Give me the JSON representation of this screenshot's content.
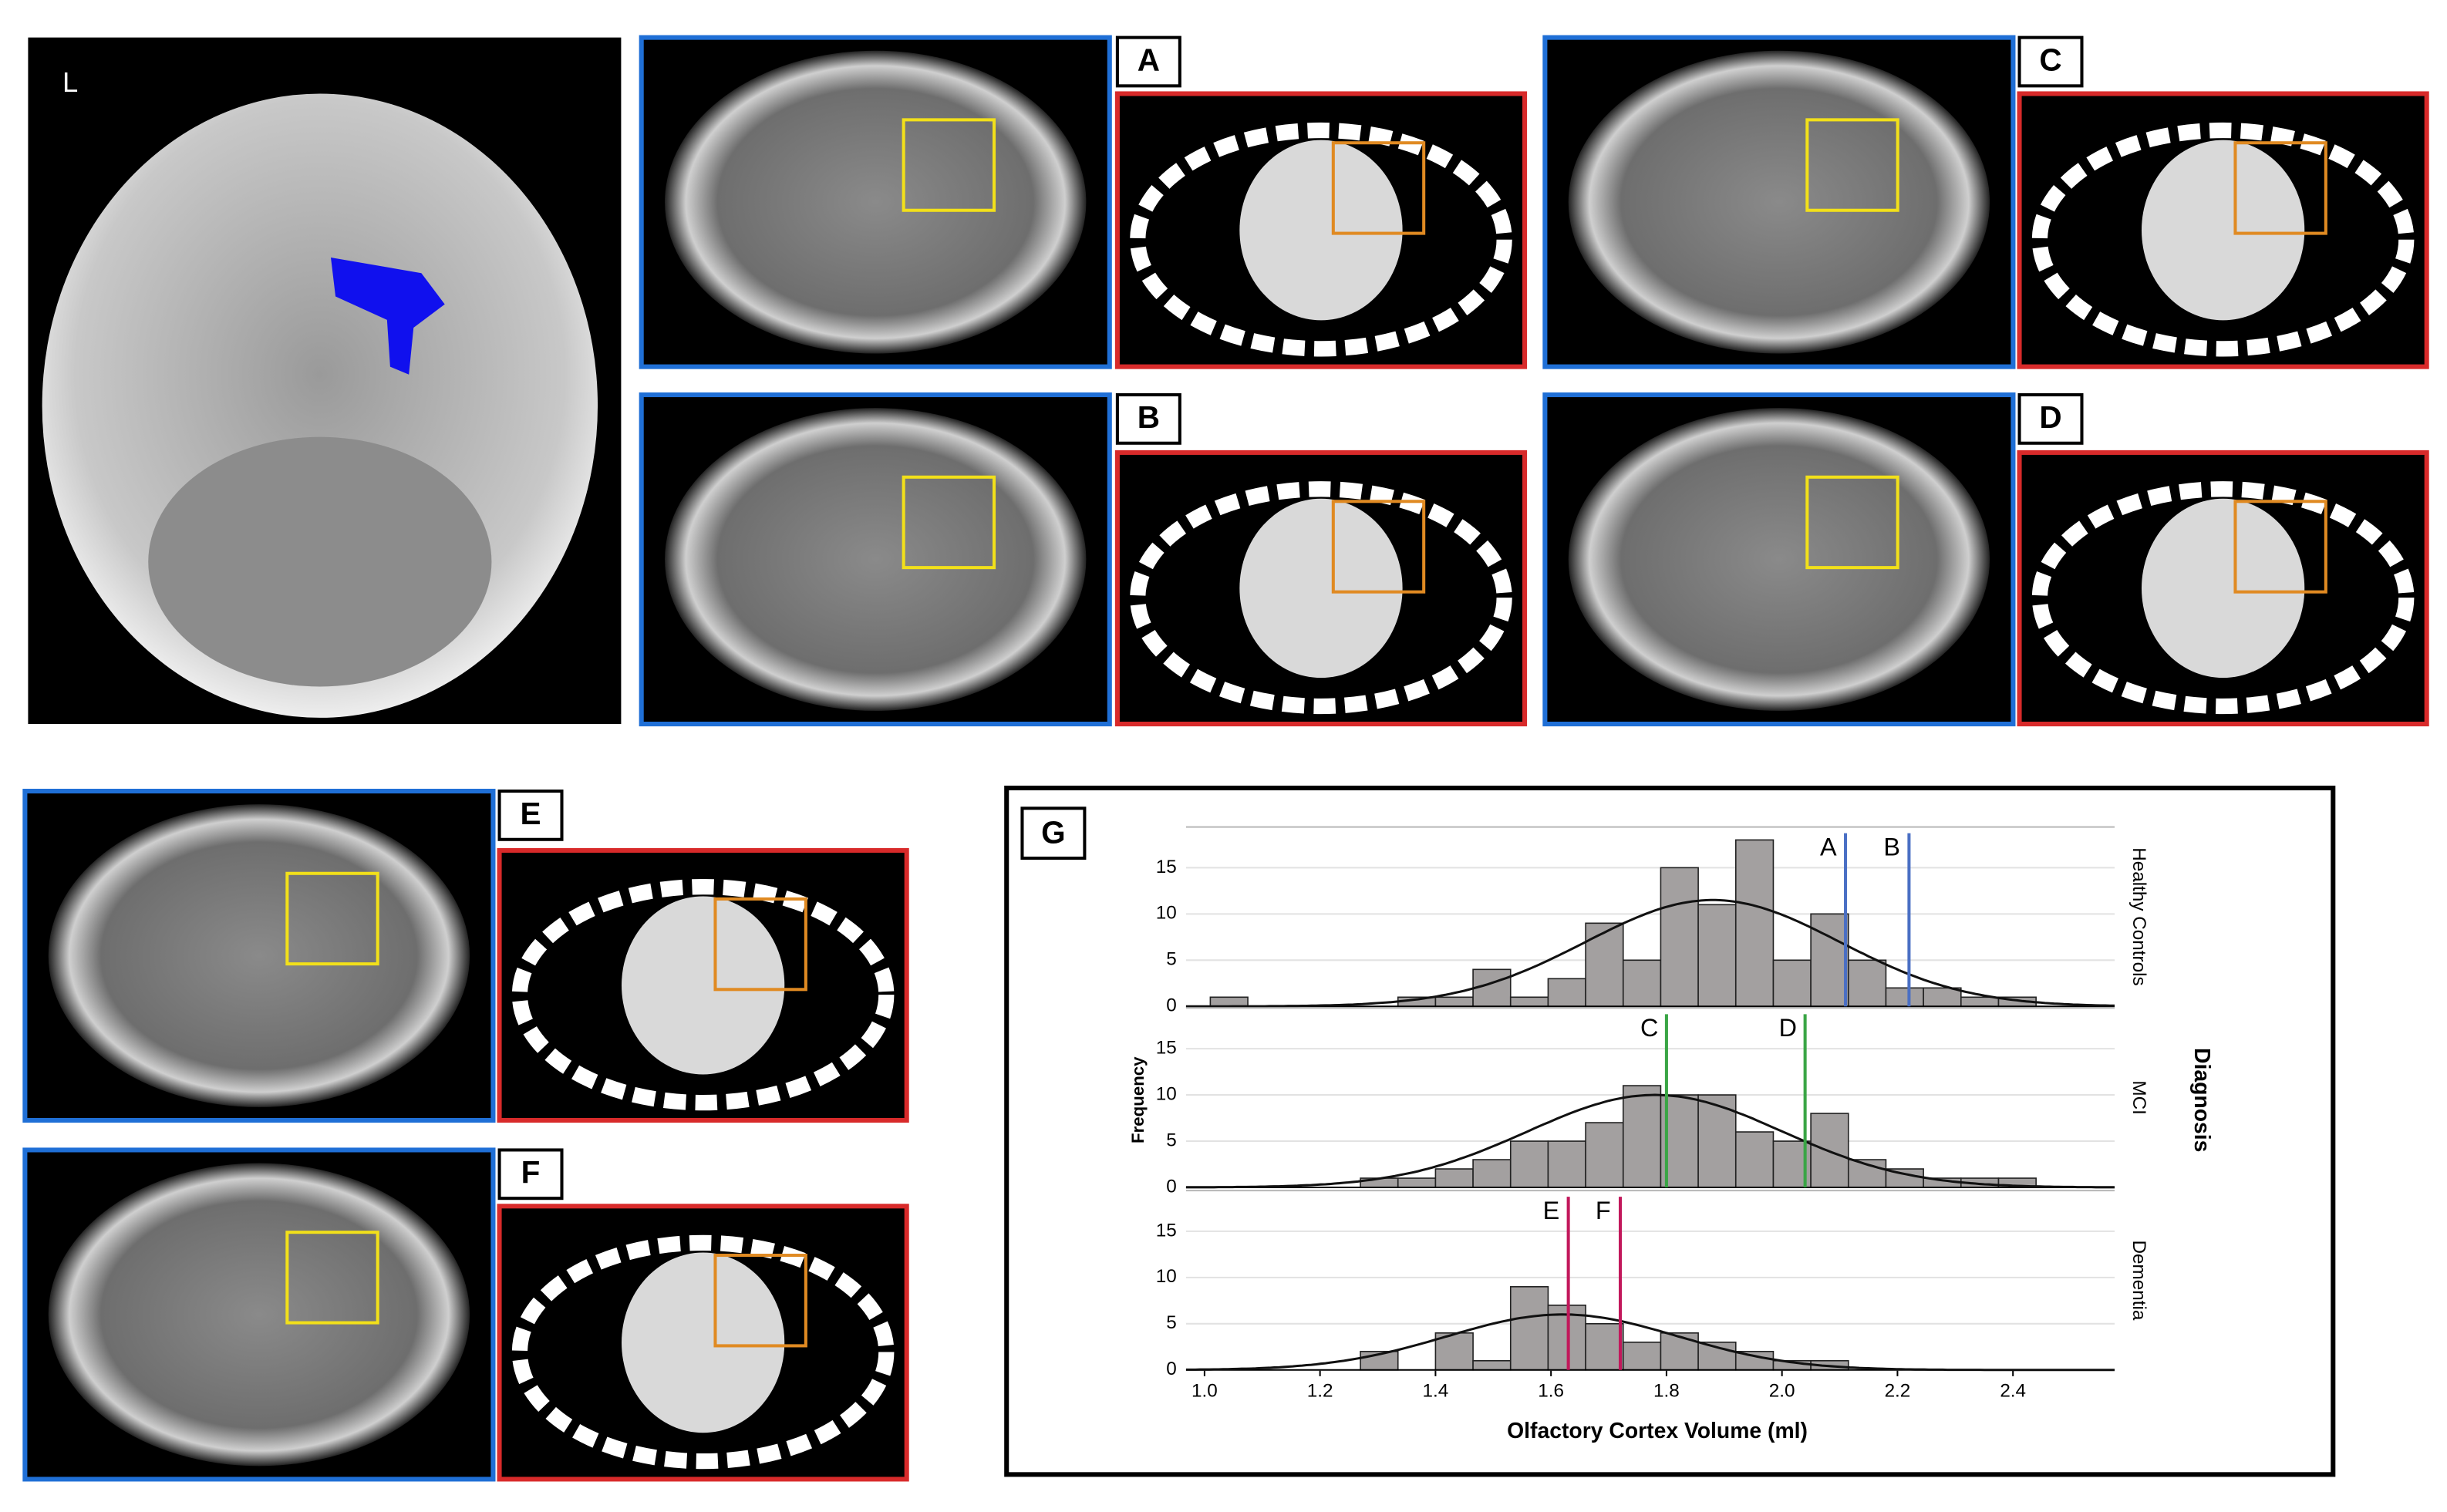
{
  "figure": {
    "orientation_label": "L",
    "panels": [
      "A",
      "B",
      "C",
      "D",
      "E",
      "F"
    ]
  },
  "chart_data": {
    "type": "histogram",
    "panel_label": "G",
    "xlabel": "Olfactory Cortex Volume (ml)",
    "ylabel": "Frequency",
    "facet_title": "Diagnosis",
    "bins": [
      1.01,
      1.075,
      1.14,
      1.205,
      1.27,
      1.335,
      1.4,
      1.465,
      1.53,
      1.595,
      1.66,
      1.725,
      1.79,
      1.855,
      1.92,
      1.985,
      2.05,
      2.115,
      2.18,
      2.245,
      2.31,
      2.375,
      2.44,
      2.505
    ],
    "xlim": [
      0.968,
      2.576
    ],
    "xticks": [
      {
        "value": 1,
        "label": "1.0"
      },
      1.2,
      1.4,
      1.6,
      1.8,
      {
        "value": 2,
        "label": "2.0"
      },
      2.2,
      2.4
    ],
    "ylim": [
      0,
      19.4
    ],
    "yticks": [
      0,
      5,
      10,
      15
    ],
    "color": "#a3a0a0",
    "grid": true,
    "series": [
      {
        "name": "Healthy Controls",
        "values": [
          1,
          0,
          0,
          0,
          0,
          1,
          1,
          4,
          1,
          3,
          9,
          5,
          15,
          11,
          18,
          5,
          10,
          5,
          2,
          2,
          1,
          1,
          0
        ],
        "fit": {
          "mean": 1.88,
          "sd": 0.22,
          "peak": 11.5
        },
        "marker_color": "#4a6fc4",
        "markers": [
          {
            "label": "A",
            "value": 2.11
          },
          {
            "label": "B",
            "value": 2.22
          }
        ]
      },
      {
        "name": "MCI",
        "values": [
          0,
          0,
          0,
          0,
          1,
          1,
          2,
          3,
          5,
          5,
          7,
          11,
          10,
          10,
          6,
          5,
          8,
          3,
          2,
          1,
          1,
          1,
          0
        ],
        "fit": {
          "mean": 1.78,
          "sd": 0.22,
          "peak": 10
        },
        "marker_color": "#3aa545",
        "markers": [
          {
            "label": "C",
            "value": 1.8
          },
          {
            "label": "D",
            "value": 2.04
          }
        ]
      },
      {
        "name": "Dementia",
        "values": [
          0,
          0,
          0,
          0,
          2,
          0,
          4,
          1,
          9,
          7,
          5,
          3,
          4,
          3,
          2,
          1,
          1,
          0,
          0,
          0,
          0,
          0,
          0
        ],
        "fit": {
          "mean": 1.62,
          "sd": 0.2,
          "peak": 6
        },
        "marker_color": "#c2185b",
        "markers": [
          {
            "label": "E",
            "value": 1.63
          },
          {
            "label": "F",
            "value": 1.72
          }
        ]
      }
    ]
  }
}
